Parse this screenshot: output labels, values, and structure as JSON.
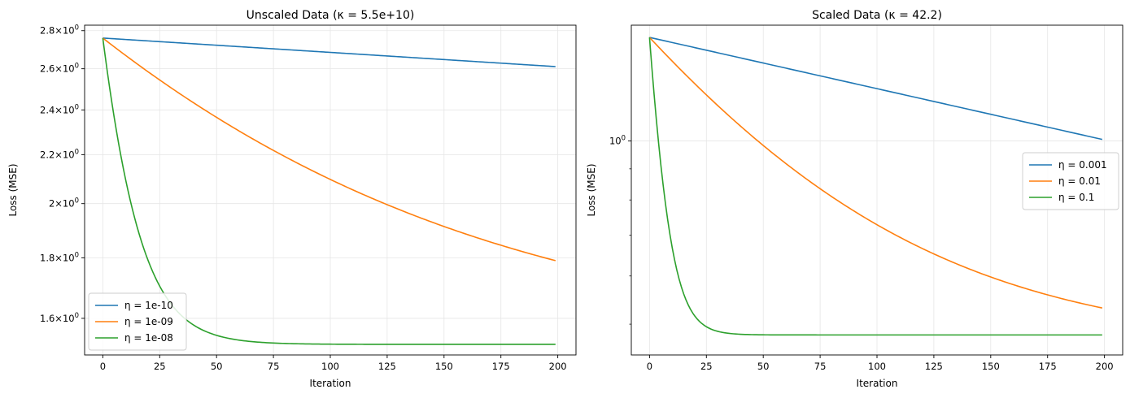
{
  "chart_data": [
    {
      "type": "line",
      "title": "Unscaled Data (κ = 5.5e+10)",
      "xlabel": "Iteration",
      "ylabel": "Loss (MSE)",
      "yscale": "log",
      "xlim": [
        -8,
        208
      ],
      "ylim": [
        1.49,
        2.83
      ],
      "xticks": [
        0,
        25,
        50,
        75,
        100,
        125,
        150,
        175,
        200
      ],
      "yticks": [
        {
          "value": 1.6,
          "mant": "1.6",
          "base": "10",
          "exp": "0"
        },
        {
          "value": 1.8,
          "mant": "1.8",
          "base": "10",
          "exp": "0"
        },
        {
          "value": 2.0,
          "mant": "2",
          "base": "10",
          "exp": "0"
        },
        {
          "value": 2.2,
          "mant": "2.2",
          "base": "10",
          "exp": "0"
        },
        {
          "value": 2.4,
          "mant": "2.4",
          "base": "10",
          "exp": "0"
        },
        {
          "value": 2.6,
          "mant": "2.6",
          "base": "10",
          "exp": "0"
        },
        {
          "value": 2.8,
          "mant": "2.8",
          "base": "10",
          "exp": "0"
        }
      ],
      "legend_position": "lower-left",
      "series": [
        {
          "name": "η = 1e-10",
          "color": "#1f77b4",
          "start": 2.76,
          "asymptote": 0.0,
          "rate": 0.000279,
          "n": 200
        },
        {
          "name": "η = 1e-09",
          "color": "#ff7f0e",
          "start": 2.76,
          "asymptote": 1.52,
          "rate": 0.00766,
          "n": 200
        },
        {
          "name": "η = 1e-08",
          "color": "#2ca02c",
          "start": 2.76,
          "asymptote": 1.521,
          "rate": 0.0766,
          "n": 200
        }
      ]
    },
    {
      "type": "line",
      "title": "Scaled Data (κ = 42.2)",
      "xlabel": "Iteration",
      "ylabel": "Loss (MSE)",
      "yscale": "log",
      "xlim": [
        -8,
        208
      ],
      "ylim": [
        0.445,
        1.55
      ],
      "xticks": [
        0,
        25,
        50,
        75,
        100,
        125,
        150,
        175,
        200
      ],
      "yticks": [
        {
          "value": 1.0,
          "mant": "",
          "base": "10",
          "exp": "0"
        }
      ],
      "legend_position": "center-right",
      "series": [
        {
          "name": "η = 0.001",
          "color": "#1f77b4",
          "start": 1.48,
          "asymptote": 0.0,
          "rate": 0.00194,
          "n": 200
        },
        {
          "name": "η = 0.01",
          "color": "#ff7f0e",
          "start": 1.48,
          "asymptote": 0.46,
          "rate": 0.01335,
          "n": 200
        },
        {
          "name": "η = 0.1",
          "color": "#2ca02c",
          "start": 1.48,
          "asymptote": 0.48,
          "rate": 0.1675,
          "n": 200
        }
      ]
    }
  ]
}
